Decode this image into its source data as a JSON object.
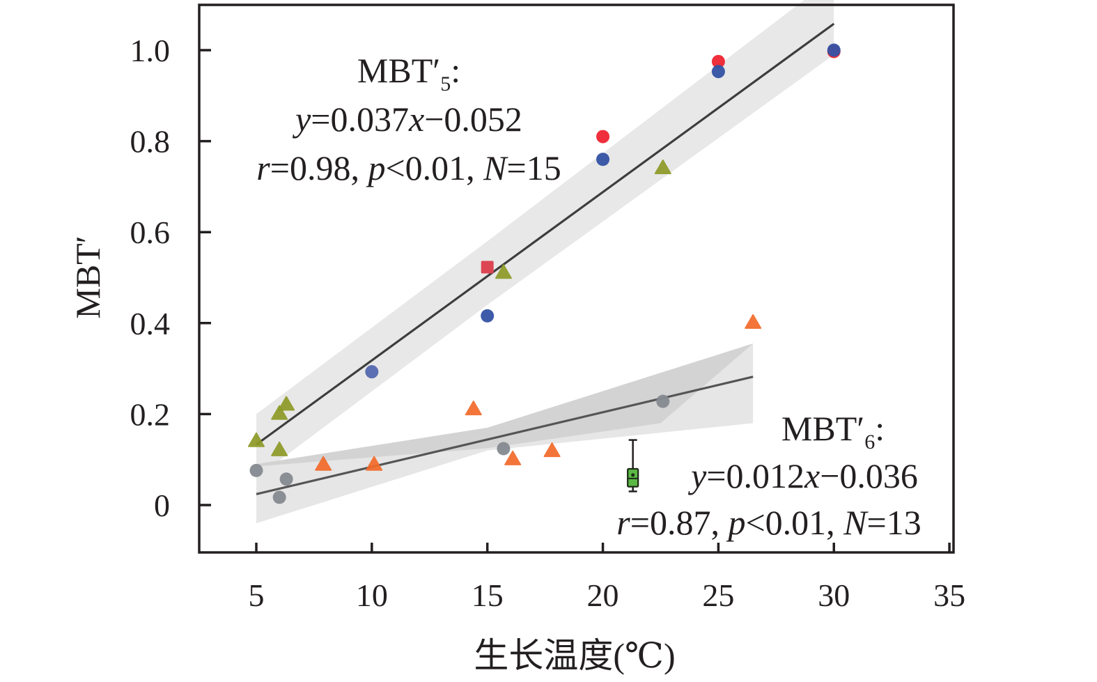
{
  "chart_data": {
    "type": "scatter",
    "title": "",
    "xlabel": "生长温度(℃)",
    "ylabel": "MBT′",
    "xlim": [
      0,
      35
    ],
    "ylim": [
      -0.1,
      1.1
    ],
    "xticks": [
      5,
      10,
      15,
      20,
      25,
      30,
      35
    ],
    "xtick_labels": [
      "5",
      "10",
      "15",
      "20",
      "25",
      "30",
      "35"
    ],
    "yticks": [
      0,
      0.2,
      0.4,
      0.6,
      0.8,
      1.0
    ],
    "ytick_labels": [
      "0",
      "0.2",
      "0.4",
      "0.6",
      "0.8",
      "1.0"
    ],
    "grid": false,
    "series": [
      {
        "name": "red-circles",
        "marker": "circle",
        "color": "#ee2430",
        "points": [
          [
            20,
            0.81
          ],
          [
            25,
            0.975
          ],
          [
            30,
            0.997
          ]
        ]
      },
      {
        "name": "blue-circles",
        "marker": "circle",
        "color": "#3452a4",
        "points": [
          [
            10,
            0.293
          ],
          [
            15,
            0.416
          ],
          [
            20,
            0.76
          ],
          [
            25,
            0.953
          ],
          [
            30,
            1.0
          ]
        ]
      },
      {
        "name": "red-square",
        "marker": "square",
        "color": "#dc4652",
        "points": [
          [
            15,
            0.523
          ]
        ]
      },
      {
        "name": "olive-triangles",
        "marker": "triangle",
        "color": "#8d9a27",
        "points": [
          [
            5,
            0.14
          ],
          [
            6,
            0.2
          ],
          [
            6.3,
            0.22
          ],
          [
            6,
            0.12
          ],
          [
            15.7,
            0.51
          ],
          [
            22.6,
            0.74
          ]
        ]
      },
      {
        "name": "orange-triangles",
        "marker": "triangle",
        "color": "#f26a2a",
        "points": [
          [
            7.9,
            0.088
          ],
          [
            10.1,
            0.088
          ],
          [
            14.4,
            0.21
          ],
          [
            16.1,
            0.1
          ],
          [
            17.8,
            0.118
          ],
          [
            26.5,
            0.4
          ]
        ]
      },
      {
        "name": "gray-circles",
        "marker": "circle",
        "color": "#858a90",
        "points": [
          [
            5,
            0.076
          ],
          [
            6.3,
            0.057
          ],
          [
            6,
            0.017
          ],
          [
            15.7,
            0.124
          ],
          [
            22.6,
            0.228
          ]
        ]
      }
    ],
    "boxplot": {
      "name": "green-box",
      "x": 21.3,
      "median": 0.063,
      "q1": 0.045,
      "q3": 0.075,
      "whisker_low": 0.03,
      "whisker_high": 0.143,
      "color": "#5bb844"
    },
    "regressions": [
      {
        "name": "MBT′5",
        "label_main": "MBT′",
        "label_sub": "5",
        "slope": 0.037,
        "intercept": -0.052,
        "x_range": [
          5,
          30
        ],
        "equation": {
          "y": "y",
          "eq": "=0.037",
          "x": "x",
          "rest": "−0.052"
        },
        "stats": {
          "r": "r",
          "r_val": "=0.98, ",
          "p": "p",
          "p_val": "<0.01, ",
          "n": "N",
          "n_val": "=15"
        },
        "band_color": "#e6e6e6",
        "line_color": "#3d3d3d",
        "band": {
          "lower": [
            [
              5,
              0.06
            ],
            [
              15,
              0.44
            ],
            [
              30,
              0.99
            ]
          ],
          "upper": [
            [
              5,
              0.2
            ],
            [
              15,
              0.58
            ],
            [
              30,
              1.16
            ]
          ]
        }
      },
      {
        "name": "MBT′6",
        "label_main": "MBT′",
        "label_sub": "6",
        "slope": 0.012,
        "intercept": -0.036,
        "x_range": [
          5,
          26.5
        ],
        "equation": {
          "y": "y",
          "eq": "=0.012",
          "x": "x",
          "rest": "−0.036"
        },
        "stats": {
          "r": "r",
          "r_val": "=0.87, ",
          "p": "p",
          "p_val": "<0.01, ",
          "n": "N",
          "n_val": "=13"
        },
        "band_color": "#e3e3e3",
        "band_inner_color": "#cfcfcf",
        "line_color": "#555555",
        "band": {
          "lower": [
            [
              5,
              -0.04
            ],
            [
              15,
              0.12
            ],
            [
              26.5,
              0.18
            ]
          ],
          "upper": [
            [
              5,
              0.09
            ],
            [
              15,
              0.17
            ],
            [
              26.5,
              0.355
            ]
          ]
        }
      }
    ]
  }
}
